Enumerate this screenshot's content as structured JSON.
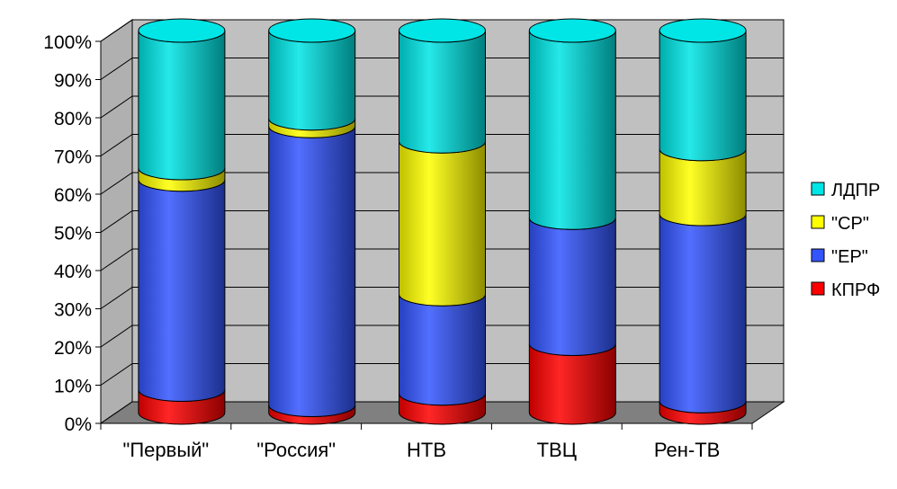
{
  "chart_data": {
    "type": "bar",
    "stacked": true,
    "normalized_percent": true,
    "three_d": "cylinder",
    "categories": [
      "\"Первый\"",
      "\"Россия\"",
      "НТВ",
      "ТВЦ",
      "Рен-ТВ"
    ],
    "series": [
      {
        "name": "КПРФ",
        "color": "#ff0000",
        "values": [
          6,
          2,
          5,
          18,
          3
        ]
      },
      {
        "name": "\"ЕР\"",
        "color": "#3355ff",
        "values": [
          55,
          73,
          26,
          33,
          49
        ]
      },
      {
        "name": "\"СР\"",
        "color": "#ffff00",
        "values": [
          3,
          2,
          40,
          0,
          17
        ]
      },
      {
        "name": "ЛДПР",
        "color": "#00e5e5",
        "values": [
          36,
          23,
          29,
          49,
          31
        ]
      }
    ],
    "y_ticks": [
      "0%",
      "10%",
      "20%",
      "30%",
      "40%",
      "50%",
      "60%",
      "70%",
      "80%",
      "90%",
      "100%"
    ],
    "ylim": [
      0,
      100
    ],
    "grid": true,
    "legend_position": "right",
    "title": "",
    "xlabel": "",
    "ylabel": ""
  }
}
